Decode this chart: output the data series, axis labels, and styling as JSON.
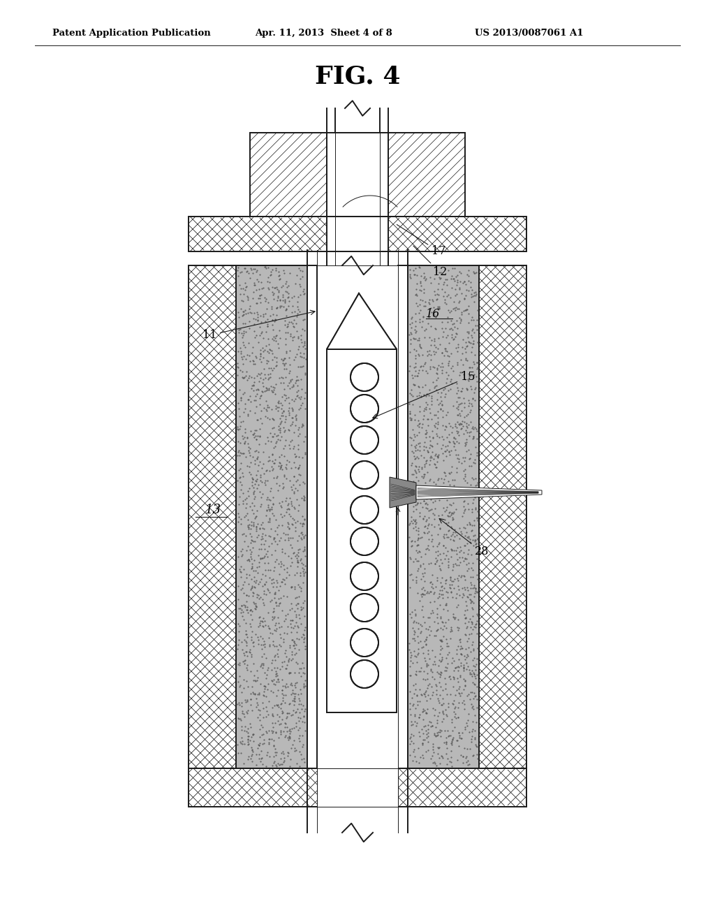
{
  "title_header": "Patent Application Publication",
  "date_text": "Apr. 11, 2013  Sheet 4 of 8",
  "patent_num": "US 2013/0087061 A1",
  "fig_label": "FIG. 4",
  "bg_color": "#ffffff",
  "line_color": "#1a1a1a",
  "gray_fill": "#b0b0b0",
  "white_fill": "#ffffff",
  "lw_main": 1.4,
  "lw_thin": 0.7
}
